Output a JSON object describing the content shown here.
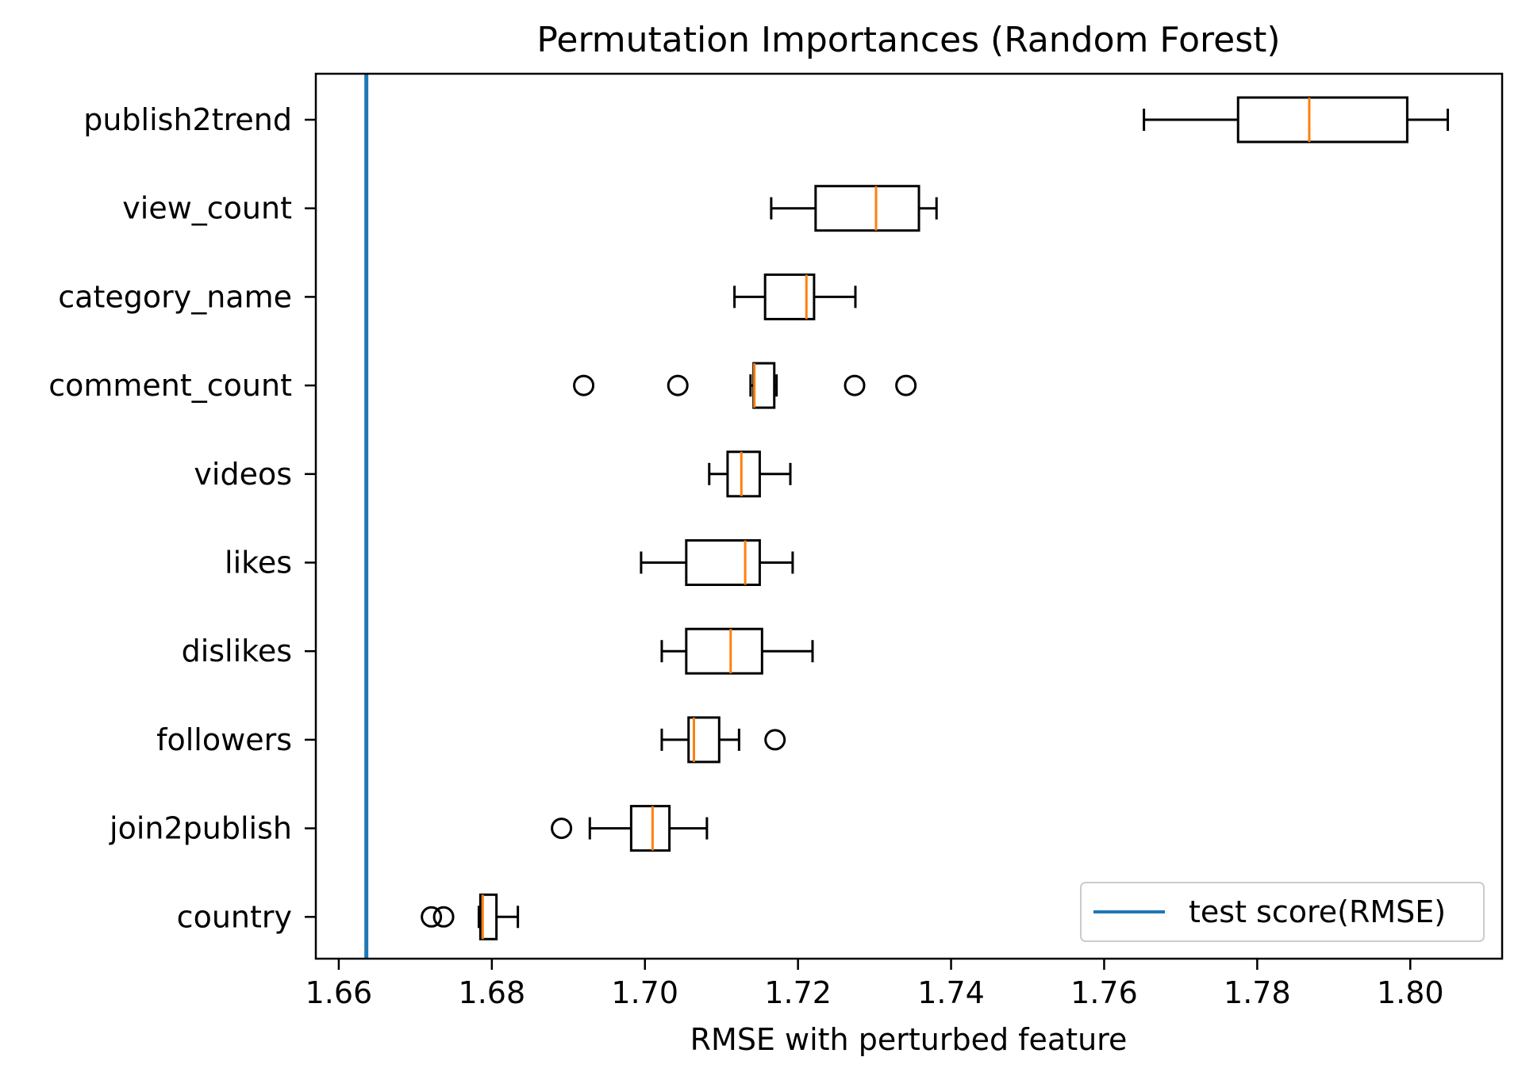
{
  "chart_data": {
    "type": "boxplot-horizontal",
    "title": "Permutation Importances (Random Forest)",
    "xlabel": "RMSE with perturbed feature",
    "ylabel": "",
    "xlim": [
      1.657,
      1.812
    ],
    "xticks": [
      1.66,
      1.68,
      1.7,
      1.72,
      1.74,
      1.76,
      1.78,
      1.8
    ],
    "xtick_labels": [
      "1.66",
      "1.68",
      "1.70",
      "1.72",
      "1.74",
      "1.76",
      "1.78",
      "1.80"
    ],
    "grid": false,
    "legend": {
      "position": "lower-right",
      "entries": [
        {
          "label": "test score(RMSE)",
          "color": "#1f77b4"
        }
      ]
    },
    "reference_line": {
      "label": "test score(RMSE)",
      "x": 1.6636,
      "color": "#1f77b4"
    },
    "box_color": "#000000",
    "median_color": "#ff7f0e",
    "features": [
      {
        "name": "publish2trend",
        "whisker_low": 1.7652,
        "q1": 1.7775,
        "median": 1.7868,
        "q3": 1.7996,
        "whisker_high": 1.8049,
        "outliers": []
      },
      {
        "name": "view_count",
        "whisker_low": 1.7165,
        "q1": 1.7223,
        "median": 1.7302,
        "q3": 1.7358,
        "whisker_high": 1.7381,
        "outliers": []
      },
      {
        "name": "category_name",
        "whisker_low": 1.7117,
        "q1": 1.7157,
        "median": 1.7211,
        "q3": 1.7221,
        "whisker_high": 1.7275,
        "outliers": []
      },
      {
        "name": "comment_count",
        "whisker_low": 1.7138,
        "q1": 1.7142,
        "median": 1.7143,
        "q3": 1.7169,
        "whisker_high": 1.7172,
        "outliers": [
          1.692,
          1.7043,
          1.7274,
          1.7341
        ]
      },
      {
        "name": "videos",
        "whisker_low": 1.7084,
        "q1": 1.7108,
        "median": 1.7126,
        "q3": 1.715,
        "whisker_high": 1.719,
        "outliers": []
      },
      {
        "name": "likes",
        "whisker_low": 1.6995,
        "q1": 1.7054,
        "median": 1.7131,
        "q3": 1.715,
        "whisker_high": 1.7193,
        "outliers": []
      },
      {
        "name": "dislikes",
        "whisker_low": 1.7022,
        "q1": 1.7054,
        "median": 1.7112,
        "q3": 1.7153,
        "whisker_high": 1.7219,
        "outliers": []
      },
      {
        "name": "followers",
        "whisker_low": 1.7022,
        "q1": 1.7057,
        "median": 1.7064,
        "q3": 1.7097,
        "whisker_high": 1.7123,
        "outliers": [
          1.717
        ]
      },
      {
        "name": "join2publish",
        "whisker_low": 1.6928,
        "q1": 1.6982,
        "median": 1.701,
        "q3": 1.7032,
        "whisker_high": 1.7081,
        "outliers": [
          1.6891
        ]
      },
      {
        "name": "country",
        "whisker_low": 1.6783,
        "q1": 1.6785,
        "median": 1.6788,
        "q3": 1.6806,
        "whisker_high": 1.6834,
        "outliers": [
          1.6721,
          1.6737
        ]
      }
    ]
  }
}
